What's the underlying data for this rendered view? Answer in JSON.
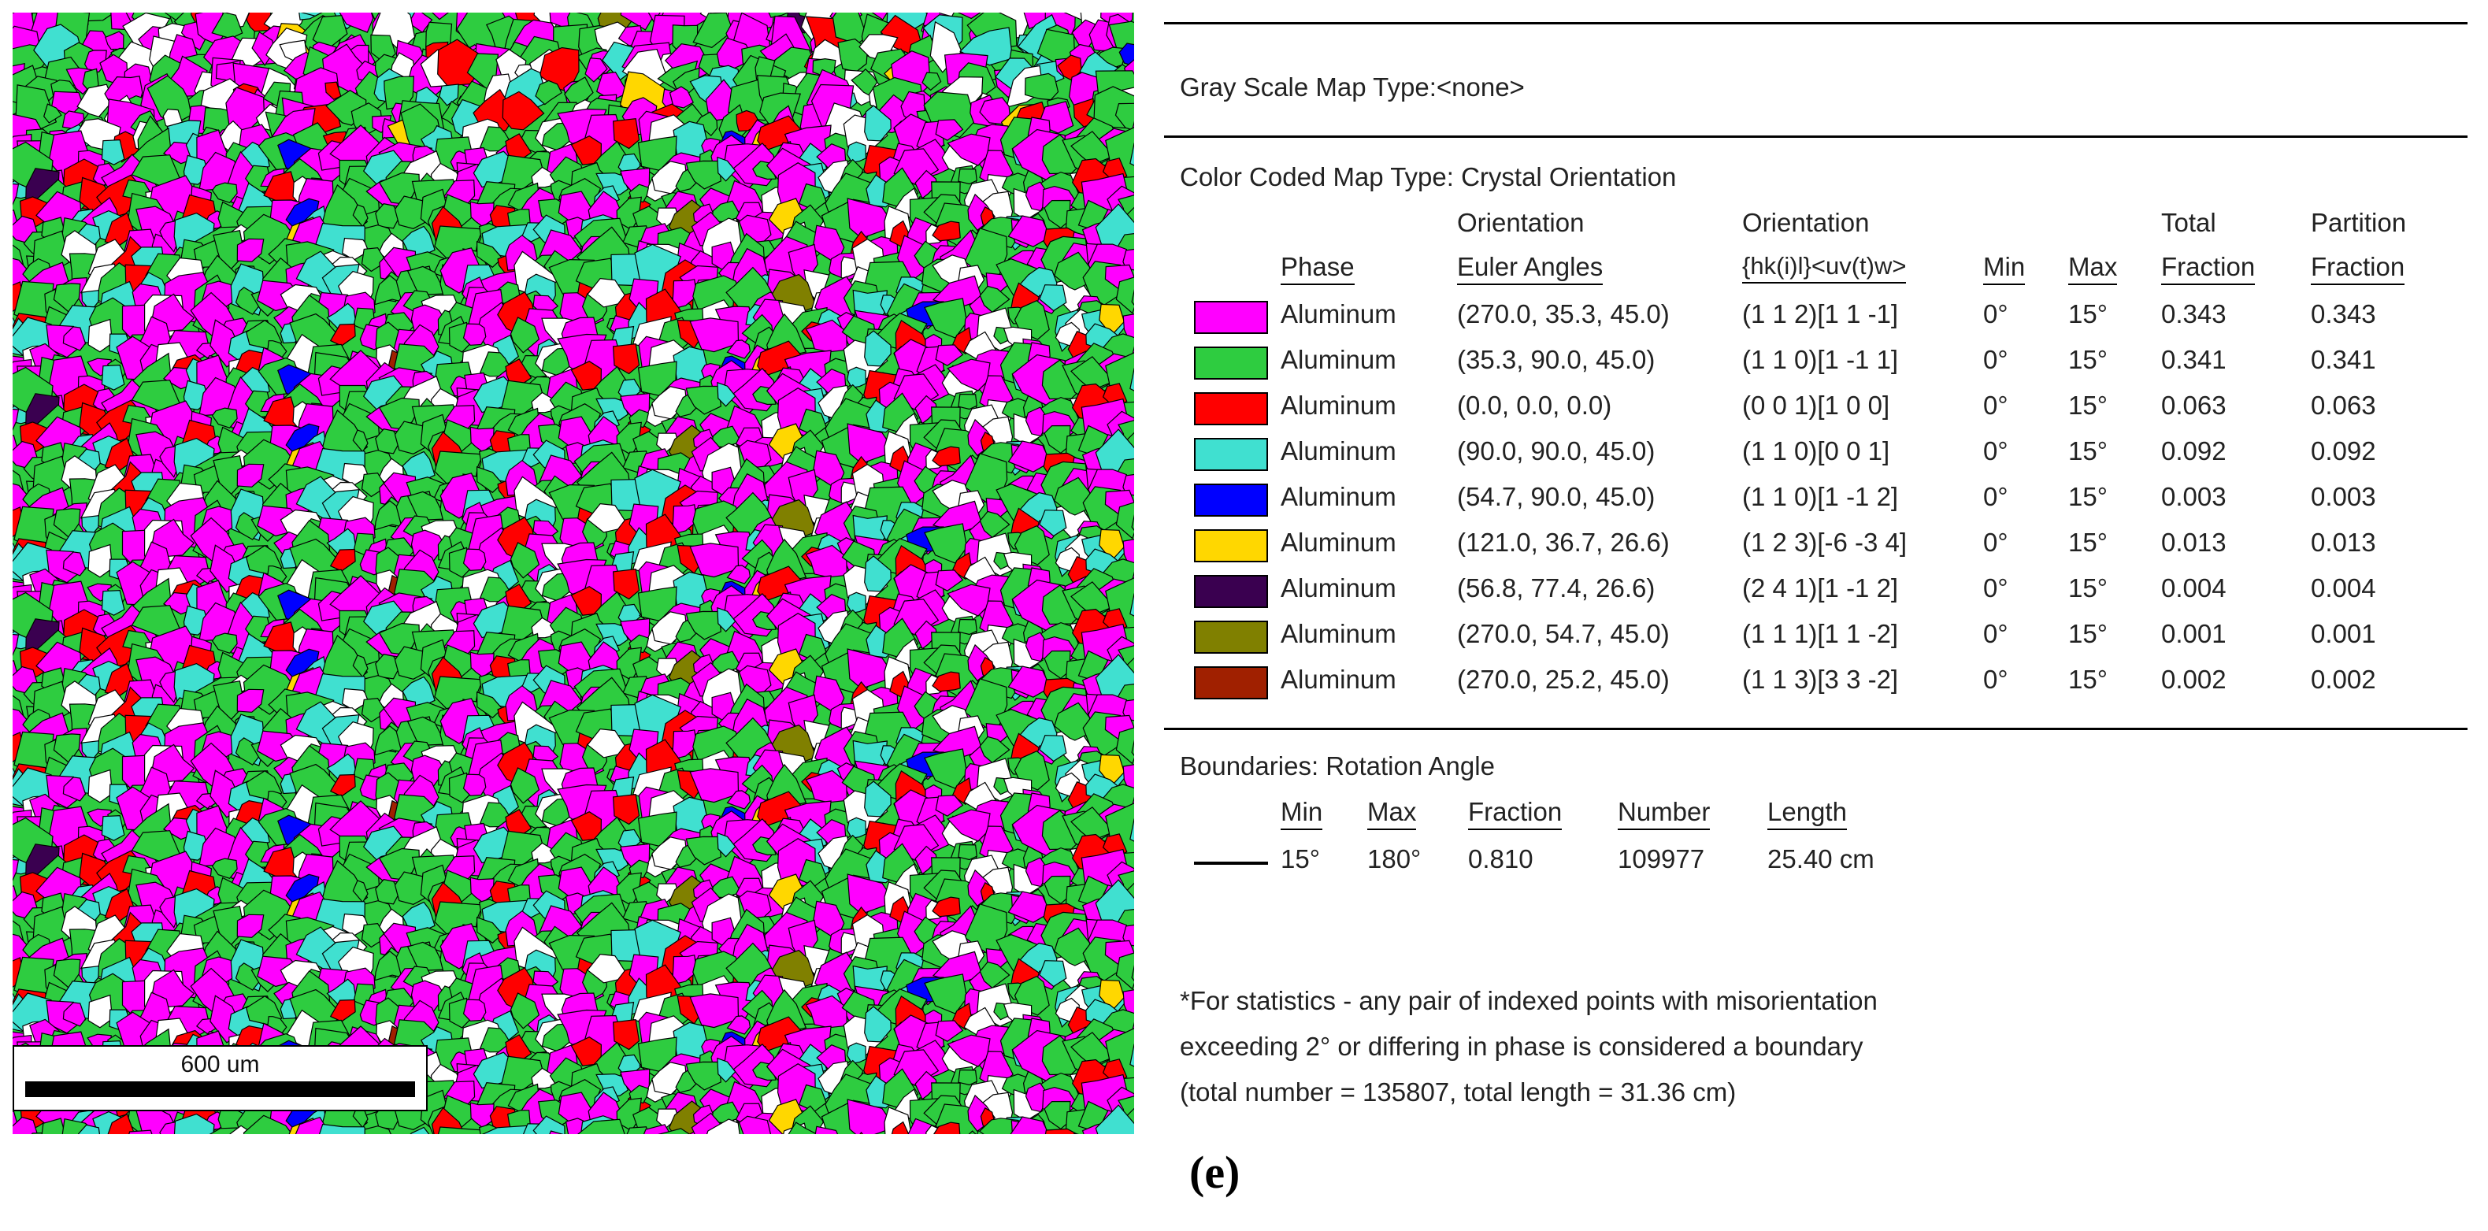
{
  "map": {
    "scale_label": "600 um",
    "grain_colors": [
      "#ff00ff",
      "#2ecc40",
      "#ff0000",
      "#40e0d0",
      "#0000ff",
      "#ffd700",
      "#3a0050",
      "#808000",
      "#a02000",
      "#ffffff"
    ]
  },
  "legend": {
    "gray_scale": "Gray Scale Map Type:<none>",
    "color_coded": "Color Coded Map Type: Crystal Orientation",
    "headers": {
      "orientation_1": "Orientation",
      "orientation_2": "Orientation",
      "total": "Total",
      "partition": "Partition",
      "phase": "Phase",
      "euler": "Euler Angles",
      "hkl": "{hk(i)l}<uv(t)w>",
      "min": "Min",
      "max": "Max",
      "fraction_1": "Fraction",
      "fraction_2": "Fraction"
    },
    "rows": [
      {
        "color": "#ff00ff",
        "phase": "Aluminum",
        "euler": "(270.0, 35.3, 45.0)",
        "hkl": "(1 1 2)[1 1 -1]",
        "min": "0°",
        "max": "15°",
        "total": "0.343",
        "partition": "0.343"
      },
      {
        "color": "#2ecc40",
        "phase": "Aluminum",
        "euler": "(35.3, 90.0, 45.0)",
        "hkl": "(1 1 0)[1 -1 1]",
        "min": "0°",
        "max": "15°",
        "total": "0.341",
        "partition": "0.341"
      },
      {
        "color": "#ff0000",
        "phase": "Aluminum",
        "euler": "(0.0, 0.0, 0.0)",
        "hkl": "(0 0 1)[1 0 0]",
        "min": "0°",
        "max": "15°",
        "total": "0.063",
        "partition": "0.063"
      },
      {
        "color": "#40e0d0",
        "phase": "Aluminum",
        "euler": "(90.0, 90.0, 45.0)",
        "hkl": "(1 1 0)[0 0 1]",
        "min": "0°",
        "max": "15°",
        "total": "0.092",
        "partition": "0.092"
      },
      {
        "color": "#0000ff",
        "phase": "Aluminum",
        "euler": "(54.7, 90.0, 45.0)",
        "hkl": "(1 1 0)[1 -1 2]",
        "min": "0°",
        "max": "15°",
        "total": "0.003",
        "partition": "0.003"
      },
      {
        "color": "#ffd700",
        "phase": "Aluminum",
        "euler": "(121.0, 36.7, 26.6)",
        "hkl": "(1 2 3)[-6 -3 4]",
        "min": "0°",
        "max": "15°",
        "total": "0.013",
        "partition": "0.013"
      },
      {
        "color": "#3a0050",
        "phase": "Aluminum",
        "euler": "(56.8, 77.4, 26.6)",
        "hkl": "(2 4 1)[1 -1 2]",
        "min": "0°",
        "max": "15°",
        "total": "0.004",
        "partition": "0.004"
      },
      {
        "color": "#808000",
        "phase": "Aluminum",
        "euler": "(270.0, 54.7, 45.0)",
        "hkl": "(1 1 1)[1 1 -2]",
        "min": "0°",
        "max": "15°",
        "total": "0.001",
        "partition": "0.001"
      },
      {
        "color": "#a02000",
        "phase": "Aluminum",
        "euler": "(270.0, 25.2, 45.0)",
        "hkl": "(1 1 3)[3 3 -2]",
        "min": "0°",
        "max": "15°",
        "total": "0.002",
        "partition": "0.002"
      }
    ],
    "boundaries": {
      "title": "Boundaries: Rotation Angle",
      "h_min": "Min",
      "h_max": "Max",
      "h_fraction": "Fraction",
      "h_number": "Number",
      "h_length": "Length",
      "min": "15°",
      "max": "180°",
      "fraction": "0.810",
      "number": "109977",
      "length": "25.40 cm"
    },
    "note_1": "*For statistics - any pair of indexed points with misorientation",
    "note_2": "exceeding 2°  or differing in phase is considered a boundary",
    "note_3": "(total number = 135807, total length = 31.36 cm)"
  },
  "caption": "(e)"
}
